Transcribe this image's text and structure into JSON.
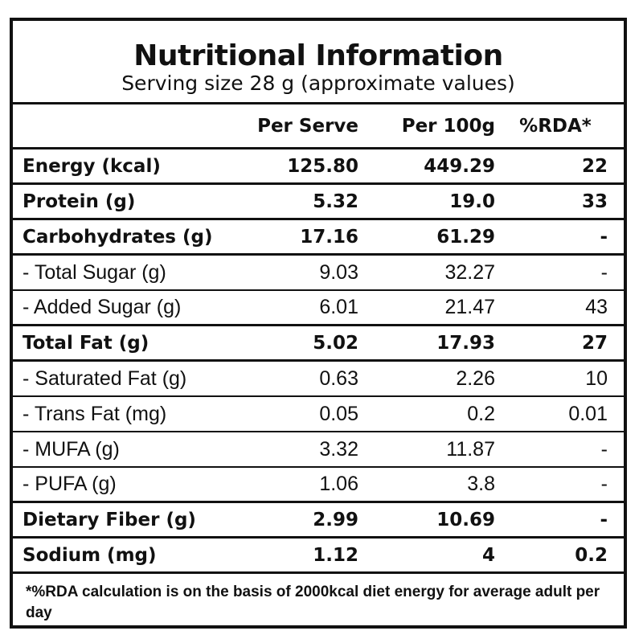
{
  "title": "Nutritional Information",
  "subtitle": "Serving size 28 g (approximate values)",
  "columns": [
    "Per Serve",
    "Per 100g",
    "%RDA*"
  ],
  "rows": [
    {
      "label": "Energy (kcal)",
      "per_serve": "125.80",
      "per_100g": "449.29",
      "rda": "22",
      "bold": true
    },
    {
      "label": "Protein (g)",
      "per_serve": "5.32",
      "per_100g": "19.0",
      "rda": "33",
      "bold": true
    },
    {
      "label": "Carbohydrates (g)",
      "per_serve": "17.16",
      "per_100g": "61.29",
      "rda": "-",
      "bold": true
    },
    {
      "label": "- Total Sugar (g)",
      "per_serve": "9.03",
      "per_100g": "32.27",
      "rda": "-",
      "bold": false
    },
    {
      "label": "- Added Sugar (g)",
      "per_serve": "6.01",
      "per_100g": "21.47",
      "rda": "43",
      "bold": false
    },
    {
      "label": "Total Fat (g)",
      "per_serve": "5.02",
      "per_100g": "17.93",
      "rda": "27",
      "bold": true
    },
    {
      "label": "- Saturated Fat (g)",
      "per_serve": "0.63",
      "per_100g": "2.26",
      "rda": "10",
      "bold": false
    },
    {
      "label": "- Trans Fat (mg)",
      "per_serve": "0.05",
      "per_100g": "0.2",
      "rda": "0.01",
      "bold": false
    },
    {
      "label": "- MUFA (g)",
      "per_serve": "3.32",
      "per_100g": "11.87",
      "rda": "-",
      "bold": false
    },
    {
      "label": "- PUFA (g)",
      "per_serve": "1.06",
      "per_100g": "3.8",
      "rda": "-",
      "bold": false
    },
    {
      "label": "Dietary Fiber (g)",
      "per_serve": "2.99",
      "per_100g": "10.69",
      "rda": "-",
      "bold": true
    },
    {
      "label": "Sodium (mg)",
      "per_serve": "1.12",
      "per_100g": "4",
      "rda": "0.2",
      "bold": true
    }
  ],
  "footnote": "*%RDA calculation is on the basis of 2000kcal diet  energy  for average adult per day"
}
